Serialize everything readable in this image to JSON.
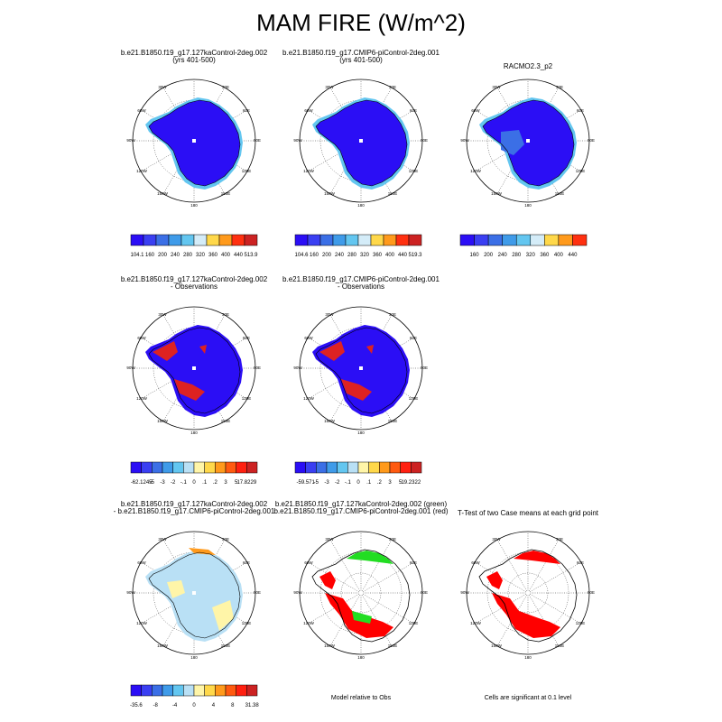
{
  "figure_title": "MAM FIRE (W/m^2)",
  "panels": [
    {
      "title1": "b.e21.B1850.f19_g17.127kaControl-2deg.002",
      "title2": "(yrs 401-500)"
    },
    {
      "title1": "b.e21.B1850.f19_g17.CMIP6-piControl-2deg.001",
      "title2": "(yrs 401-500)"
    },
    {
      "title1": "RACMO2.3_p2",
      "title2": ""
    },
    {
      "title1": "b.e21.B1850.f19_g17.127kaControl-2deg.002",
      "title2": "- Observations"
    },
    {
      "title1": "b.e21.B1850.f19_g17.CMIP6-piControl-2deg.001",
      "title2": "- Observations"
    },
    {
      "title1": "b.e21.B1850.f19_g17.127kaControl-2deg.002",
      "title2": "- b.e21.B1850.f19_g17.CMIP6-piControl-2deg.001"
    },
    {
      "title1": "b.e21.B1850.f19_g17.127kaControl-2deg.002 (green)",
      "title2": "b.e21.B1850.f19_g17.CMIP6-piControl-2deg.001 (red)"
    },
    {
      "title1": "T-Test of two Case means at each grid point",
      "title2": ""
    }
  ],
  "map_labels": {
    "lon": [
      "30W",
      "30E",
      "60W",
      "60E",
      "90W",
      "90E",
      "120W",
      "120E",
      "150W",
      "150E",
      "180"
    ]
  },
  "notes": {
    "model_relative": "Model relative to Obs",
    "significance": "Cells are significant at 0.1 level"
  },
  "chart_data": [
    {
      "type": "heatmap",
      "panel": 1,
      "colorbar": {
        "labels": [
          "104.1",
          "160",
          "200",
          "240",
          "280",
          "320",
          "360",
          "400",
          "440",
          "513.9"
        ],
        "colors": [
          "#2b0ef5",
          "#3a3ff2",
          "#3b6fe6",
          "#3f9be9",
          "#63c6f0",
          "#d4ecf8",
          "#ffd84a",
          "#ff9a1c",
          "#ff3010",
          "#cc2222"
        ]
      }
    },
    {
      "type": "heatmap",
      "panel": 2,
      "colorbar": {
        "labels": [
          "104.6",
          "160",
          "200",
          "240",
          "280",
          "320",
          "360",
          "400",
          "440",
          "519.3"
        ],
        "colors": [
          "#2b0ef5",
          "#3a3ff2",
          "#3b6fe6",
          "#3f9be9",
          "#63c6f0",
          "#d4ecf8",
          "#ffd84a",
          "#ff9a1c",
          "#ff3010",
          "#cc2222"
        ]
      }
    },
    {
      "type": "heatmap",
      "panel": 3,
      "colorbar": {
        "labels": [
          "160",
          "200",
          "240",
          "280",
          "320",
          "360",
          "400",
          "440"
        ],
        "colors": [
          "#2b0ef5",
          "#3a3ff2",
          "#3b6fe6",
          "#3f9be9",
          "#63c6f0",
          "#d4ecf8",
          "#ffd84a",
          "#ff9a1c",
          "#ff3010"
        ]
      }
    },
    {
      "type": "heatmap",
      "panel": 4,
      "colorbar": {
        "labels": [
          "-62.1245",
          "-5",
          "-3",
          "-2",
          "-.1",
          "0",
          ".1",
          ".2",
          "3",
          "5",
          "17.8229"
        ],
        "colors": [
          "#2b0ef5",
          "#3a3ff2",
          "#3b6fe6",
          "#3f9be9",
          "#63c6f0",
          "#b9e0f5",
          "#fff5a8",
          "#ffd84a",
          "#ff9a1c",
          "#ff5a10",
          "#ff2010",
          "#cc2222"
        ]
      }
    },
    {
      "type": "heatmap",
      "panel": 5,
      "colorbar": {
        "labels": [
          "-59.571",
          "-5",
          "-3",
          "-2",
          "-.1",
          "0",
          ".1",
          ".2",
          "3",
          "5",
          "19.2322"
        ],
        "colors": [
          "#2b0ef5",
          "#3a3ff2",
          "#3b6fe6",
          "#3f9be9",
          "#63c6f0",
          "#b9e0f5",
          "#fff5a8",
          "#ffd84a",
          "#ff9a1c",
          "#ff5a10",
          "#ff2010",
          "#cc2222"
        ]
      }
    },
    {
      "type": "heatmap",
      "panel": 6,
      "colorbar": {
        "labels": [
          "-35.6",
          "-8",
          "-4",
          "0",
          "4",
          "8",
          "31.38"
        ],
        "colors": [
          "#2b0ef5",
          "#3a3ff2",
          "#3b6fe6",
          "#3f9be9",
          "#63c6f0",
          "#b9e0f5",
          "#fff5a8",
          "#ffd84a",
          "#ff9a1c",
          "#ff5a10",
          "#ff2010",
          "#cc2222"
        ]
      }
    }
  ]
}
